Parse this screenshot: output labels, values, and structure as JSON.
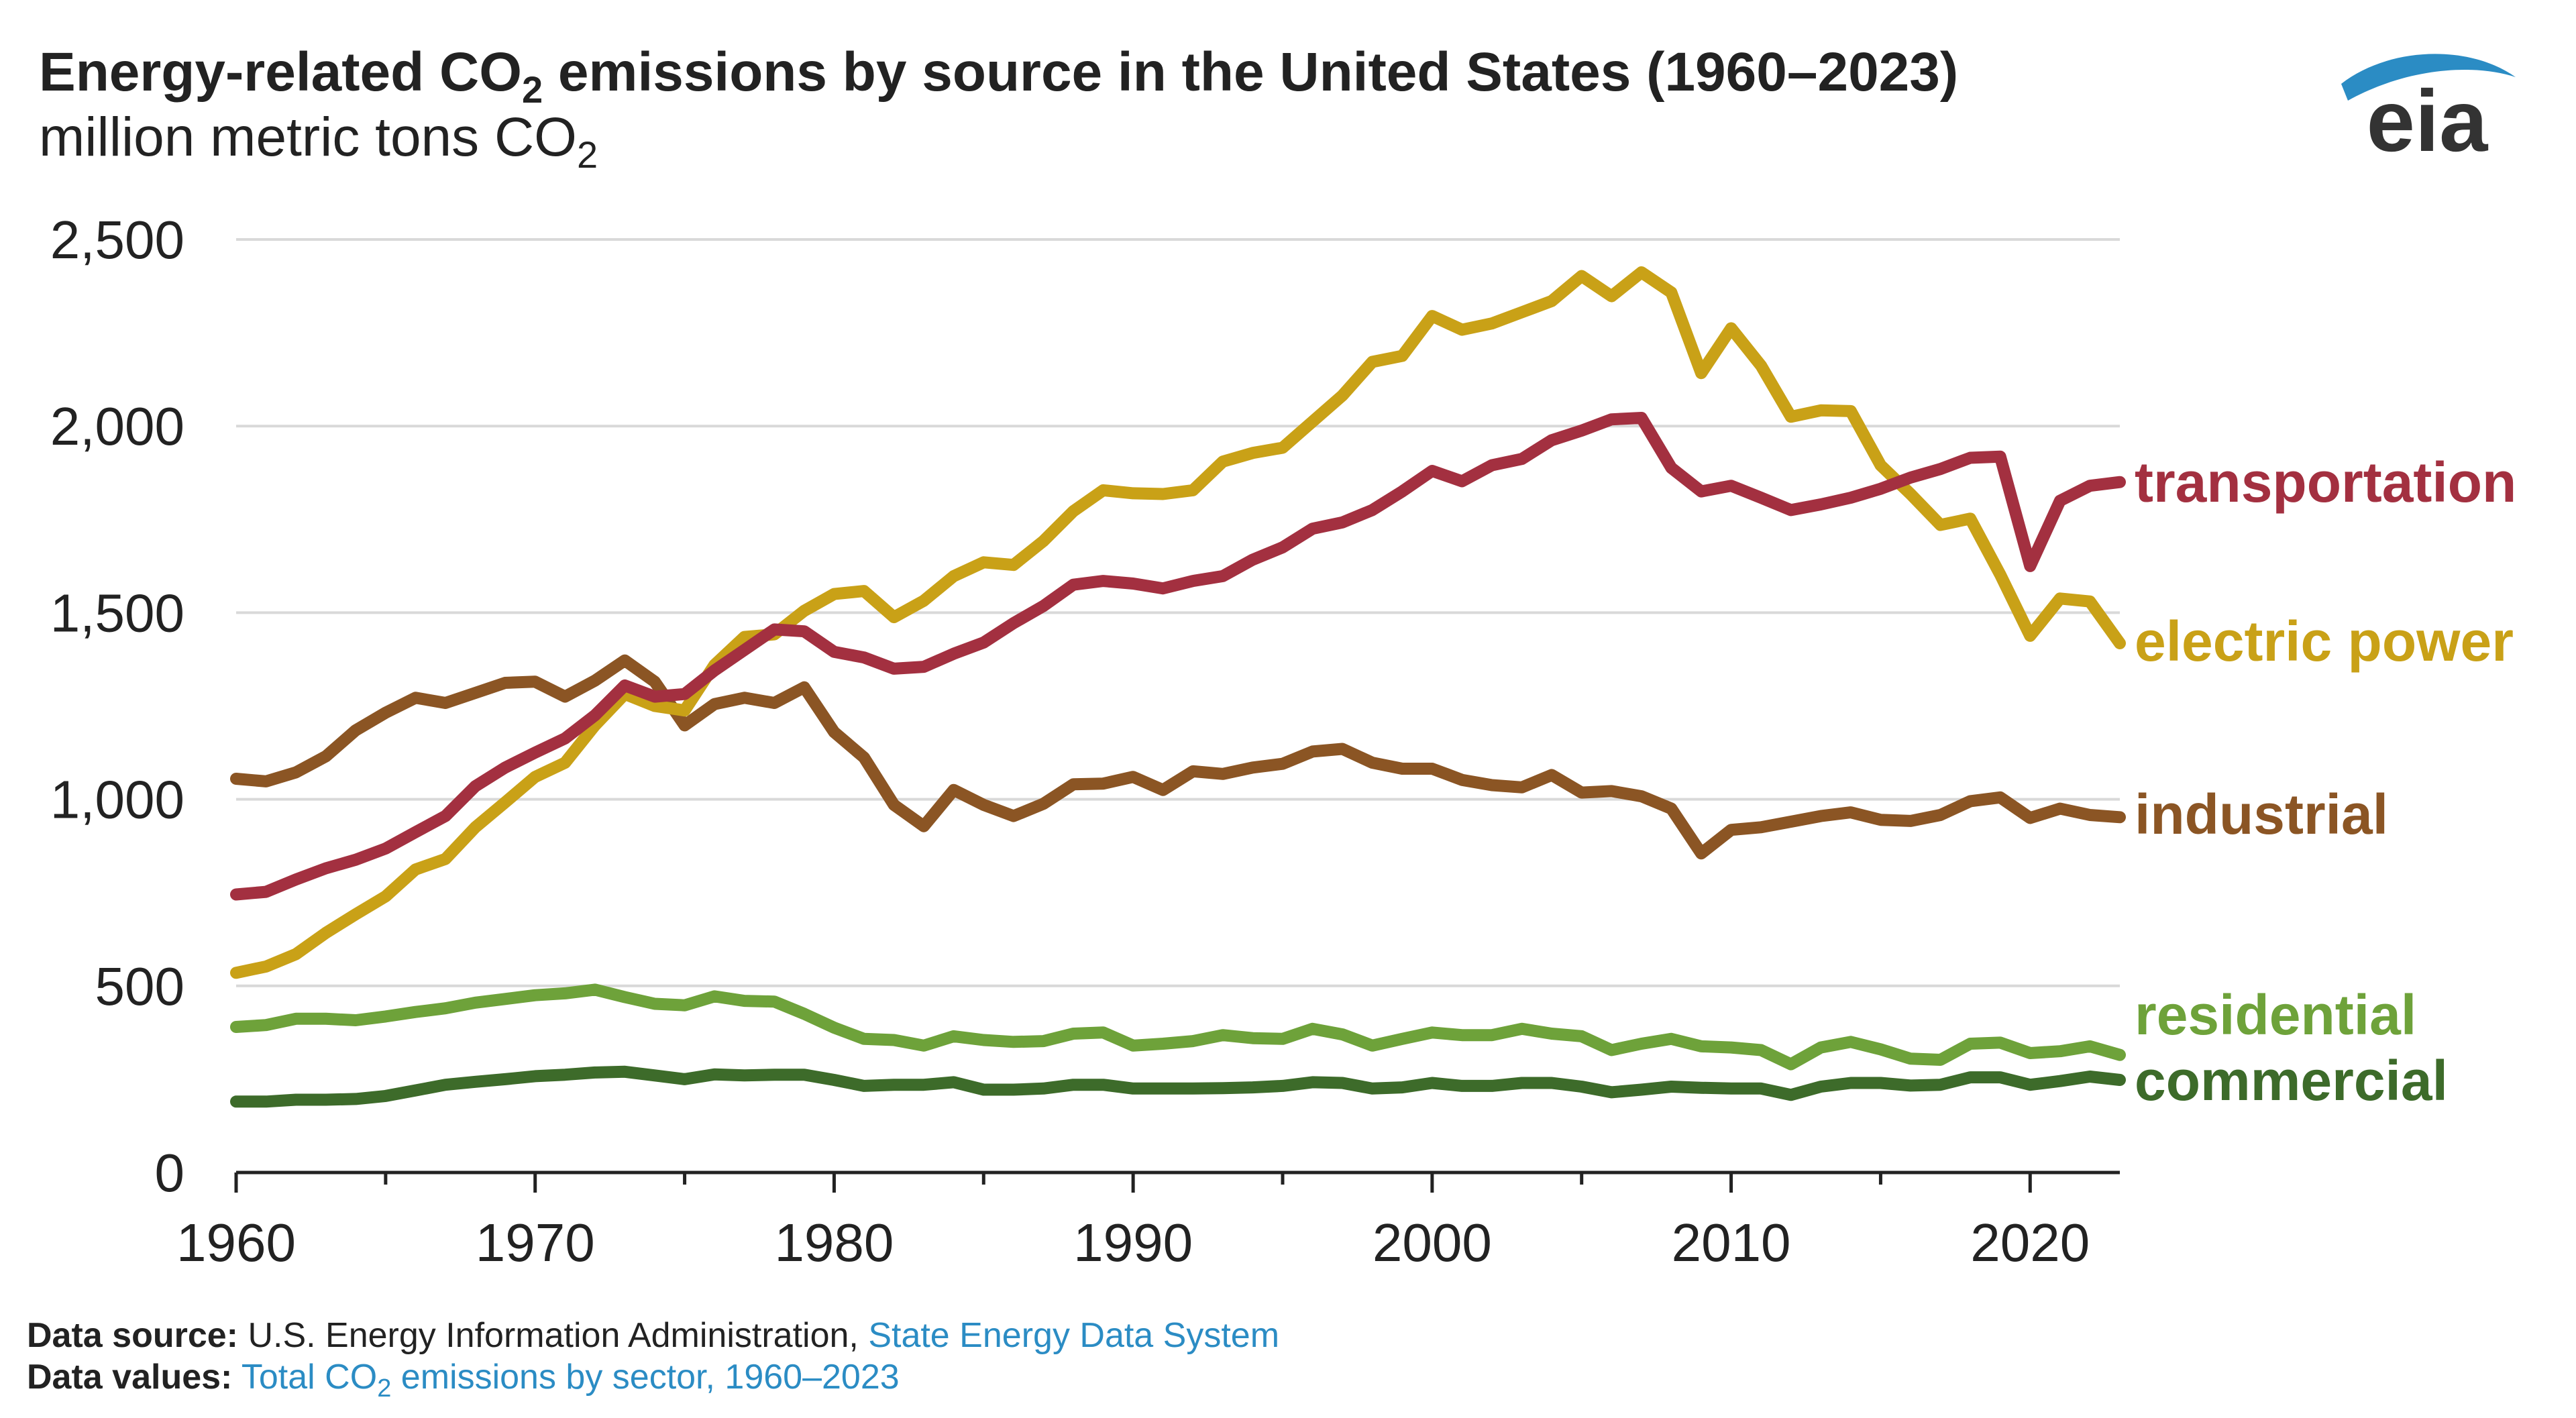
{
  "title": {
    "pre": "Energy-related CO",
    "sub": "2",
    "post": " emissions by source in the United States (1960–2023)"
  },
  "subtitle": {
    "pre": "million metric tons CO",
    "sub": "2"
  },
  "logo": {
    "text": "eia",
    "icon": "eia-swoosh-logo"
  },
  "footer": {
    "source_label": "Data source:",
    "source_text": "U.S. Energy Information Administration,",
    "source_link": "State Energy Data System",
    "values_label": "Data values:",
    "values_link_pre": "Total CO",
    "values_link_sub": "2",
    "values_link_post": " emissions by sector, 1960–2023"
  },
  "colors": {
    "transportation": "#a33040",
    "electric_power": "#c9a117",
    "industrial": "#8b5524",
    "residential": "#6ea23a",
    "commercial": "#3d6b2a",
    "link": "#2b8cc4",
    "grid": "#d9d9d9",
    "text": "#222222"
  },
  "chart_data": {
    "type": "line",
    "title": "Energy-related CO2 emissions by source in the United States (1960–2023)",
    "ylabel": "million metric tons CO2",
    "xlabel": "",
    "xlim": [
      1960,
      2023
    ],
    "ylim": [
      0,
      2500
    ],
    "grid": true,
    "x_ticks": [
      1960,
      1970,
      1980,
      1990,
      2000,
      2010,
      2020
    ],
    "y_ticks": [
      0,
      500,
      1000,
      1500,
      2000,
      2500
    ],
    "y_tick_labels": [
      "0",
      "500",
      "1,000",
      "1,500",
      "2,000",
      "2,500"
    ],
    "x": [
      1960,
      1961,
      1962,
      1963,
      1964,
      1965,
      1966,
      1967,
      1968,
      1969,
      1970,
      1971,
      1972,
      1973,
      1974,
      1975,
      1976,
      1977,
      1978,
      1979,
      1980,
      1981,
      1982,
      1983,
      1984,
      1985,
      1986,
      1987,
      1988,
      1989,
      1990,
      1991,
      1992,
      1993,
      1994,
      1995,
      1996,
      1997,
      1998,
      1999,
      2000,
      2001,
      2002,
      2003,
      2004,
      2005,
      2006,
      2007,
      2008,
      2009,
      2010,
      2011,
      2012,
      2013,
      2014,
      2015,
      2016,
      2017,
      2018,
      2019,
      2020,
      2021,
      2022,
      2023
    ],
    "series": [
      {
        "name": "transportation",
        "color_key": "transportation",
        "values": [
          745,
          752,
          785,
          815,
          838,
          868,
          912,
          955,
          1035,
          1085,
          1125,
          1163,
          1225,
          1305,
          1275,
          1282,
          1345,
          1400,
          1455,
          1450,
          1395,
          1380,
          1350,
          1355,
          1390,
          1420,
          1472,
          1518,
          1575,
          1585,
          1578,
          1565,
          1585,
          1598,
          1642,
          1675,
          1725,
          1742,
          1775,
          1825,
          1880,
          1852,
          1895,
          1912,
          1962,
          1988,
          2018,
          2022,
          1888,
          1825,
          1840,
          1808,
          1775,
          1790,
          1808,
          1832,
          1862,
          1885,
          1915,
          1918,
          1625,
          1800,
          1840,
          1850
        ]
      },
      {
        "name": "electric power",
        "color_key": "electric_power",
        "values": [
          535,
          552,
          585,
          642,
          692,
          740,
          812,
          840,
          925,
          992,
          1060,
          1098,
          1198,
          1282,
          1250,
          1238,
          1360,
          1435,
          1442,
          1505,
          1550,
          1558,
          1488,
          1532,
          1598,
          1635,
          1628,
          1692,
          1772,
          1828,
          1820,
          1818,
          1828,
          1905,
          1928,
          1942,
          2012,
          2082,
          2172,
          2188,
          2295,
          2258,
          2275,
          2305,
          2335,
          2402,
          2348,
          2412,
          2358,
          2142,
          2262,
          2162,
          2025,
          2042,
          2040,
          1895,
          1818,
          1735,
          1752,
          1602,
          1438,
          1538,
          1530,
          1418
        ]
      },
      {
        "name": "industrial",
        "color_key": "industrial",
        "values": [
          1055,
          1048,
          1072,
          1115,
          1185,
          1232,
          1272,
          1258,
          1285,
          1312,
          1315,
          1275,
          1318,
          1372,
          1315,
          1198,
          1255,
          1272,
          1258,
          1300,
          1180,
          1112,
          985,
          928,
          1025,
          985,
          955,
          988,
          1040,
          1042,
          1060,
          1025,
          1075,
          1068,
          1085,
          1095,
          1128,
          1135,
          1098,
          1082,
          1082,
          1052,
          1038,
          1032,
          1065,
          1018,
          1022,
          1008,
          975,
          855,
          918,
          925,
          940,
          955,
          965,
          945,
          942,
          958,
          995,
          1005,
          950,
          975,
          958,
          952
        ]
      },
      {
        "name": "residential",
        "color_key": "residential",
        "values": [
          390,
          395,
          412,
          412,
          408,
          418,
          430,
          440,
          455,
          465,
          475,
          480,
          490,
          470,
          452,
          448,
          472,
          460,
          458,
          425,
          388,
          358,
          355,
          340,
          365,
          355,
          350,
          352,
          372,
          375,
          340,
          345,
          352,
          368,
          360,
          358,
          385,
          370,
          340,
          358,
          375,
          368,
          368,
          385,
          372,
          365,
          328,
          345,
          358,
          338,
          335,
          328,
          290,
          335,
          350,
          330,
          305,
          302,
          345,
          348,
          320,
          325,
          338,
          315
        ]
      },
      {
        "name": "commercial",
        "color_key": "commercial",
        "values": [
          190,
          190,
          195,
          195,
          197,
          205,
          220,
          235,
          243,
          250,
          258,
          262,
          268,
          270,
          260,
          250,
          263,
          260,
          262,
          262,
          248,
          232,
          235,
          235,
          242,
          222,
          222,
          225,
          235,
          235,
          225,
          225,
          225,
          226,
          228,
          232,
          242,
          240,
          225,
          228,
          240,
          232,
          232,
          240,
          240,
          230,
          215,
          222,
          230,
          227,
          225,
          225,
          208,
          230,
          240,
          240,
          233,
          235,
          255,
          255,
          235,
          245,
          257,
          248
        ]
      }
    ],
    "series_labels": [
      "transportation",
      "electric power",
      "industrial",
      "residential",
      "commercial"
    ]
  }
}
